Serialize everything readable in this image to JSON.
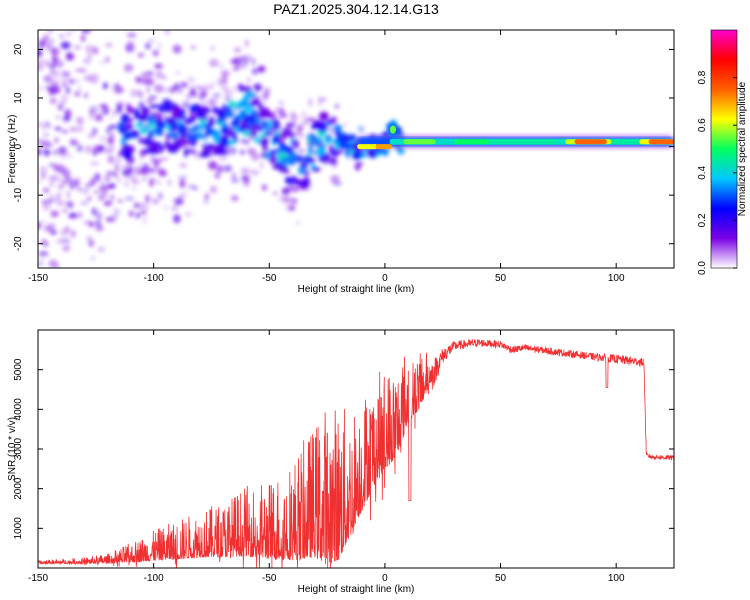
{
  "title": "PAZ1.2025.304.12.14.G13",
  "colors": {
    "snr_line": "#f03030",
    "grid": "#000000",
    "background": "#ffffff"
  },
  "chart_data": [
    {
      "type": "heatmap",
      "xlabel": "Height of straight line (km)",
      "ylabel": "Frequency (Hz)",
      "xlim": [
        -150,
        125
      ],
      "ylim": [
        -25,
        24
      ],
      "x_ticks": [
        "-150",
        "-100",
        "-50",
        "0",
        "50",
        "100"
      ],
      "x_tick_values": [
        -150,
        -100,
        -50,
        0,
        50,
        100
      ],
      "y_ticks": [
        "-20",
        "-10",
        "0",
        "10",
        "20"
      ],
      "y_tick_values": [
        -20,
        -10,
        0,
        10,
        20
      ],
      "colorbar": {
        "label": "Normalized spectral amplitude",
        "range": [
          0,
          1
        ],
        "ticks": [
          "0.0",
          "0.2",
          "0.4",
          "0.6",
          "0.8"
        ],
        "tick_values": [
          0,
          0.2,
          0.4,
          0.6,
          0.8
        ],
        "colormap": [
          "#ffffff",
          "#7b00e6",
          "#0000ff",
          "#00c8ff",
          "#00ff60",
          "#ffff00",
          "#ff6000",
          "#ff0000",
          "#ff00cc"
        ]
      },
      "ridge": [
        [
          -112,
          3
        ],
        [
          -100,
          4
        ],
        [
          -90,
          4
        ],
        [
          -80,
          3
        ],
        [
          -70,
          3
        ],
        [
          -62,
          8
        ],
        [
          -55,
          5
        ],
        [
          -48,
          1
        ],
        [
          -42,
          -2
        ],
        [
          -36,
          -4
        ],
        [
          -30,
          0
        ],
        [
          -25,
          2
        ],
        [
          -20,
          2
        ],
        [
          -15,
          0
        ],
        [
          -10,
          0
        ],
        [
          -5,
          0
        ],
        [
          0,
          0
        ],
        [
          3,
          4
        ],
        [
          6,
          1
        ],
        [
          15,
          1
        ],
        [
          30,
          1
        ],
        [
          50,
          1
        ],
        [
          80,
          1
        ],
        [
          100,
          1
        ],
        [
          125,
          1
        ]
      ]
    },
    {
      "type": "line",
      "xlabel": "Height of straight line (km)",
      "ylabel": "SNR (10 * v/v)",
      "xlim": [
        -150,
        125
      ],
      "ylim": [
        0,
        6000
      ],
      "x_ticks": [
        "-150",
        "-100",
        "-50",
        "0",
        "50",
        "100"
      ],
      "x_tick_values": [
        -150,
        -100,
        -50,
        0,
        50,
        100
      ],
      "y_ticks": [
        "1000",
        "2000",
        "3000",
        "4000",
        "5000"
      ],
      "y_tick_values": [
        1000,
        2000,
        3000,
        4000,
        5000
      ],
      "series": [
        {
          "name": "SNR",
          "x": [
            -150,
            -130,
            -120,
            -110,
            -100,
            -90,
            -80,
            -70,
            -60,
            -50,
            -40,
            -30,
            -25,
            -20,
            -15,
            -12,
            -10,
            -5,
            0,
            5,
            10,
            15,
            20,
            25,
            30,
            40,
            50,
            55,
            60,
            70,
            80,
            90,
            100,
            105,
            110,
            112,
            113,
            115,
            125
          ],
          "base": [
            120,
            130,
            150,
            200,
            280,
            340,
            420,
            450,
            520,
            480,
            520,
            700,
            600,
            700,
            1200,
            1600,
            1800,
            2400,
            2800,
            3100,
            3900,
            4200,
            4800,
            5350,
            5600,
            5680,
            5640,
            5500,
            5550,
            5480,
            5400,
            5330,
            5270,
            5230,
            5200,
            5180,
            2850,
            2800,
            2780
          ],
          "amp": [
            40,
            80,
            120,
            250,
            380,
            500,
            600,
            700,
            900,
            1000,
            1300,
            1700,
            2100,
            2000,
            1600,
            1500,
            1500,
            1400,
            1300,
            1200,
            1000,
            700,
            400,
            200,
            120,
            100,
            90,
            90,
            90,
            90,
            90,
            90,
            110,
            110,
            110,
            110,
            60,
            60,
            60
          ]
        }
      ]
    }
  ]
}
